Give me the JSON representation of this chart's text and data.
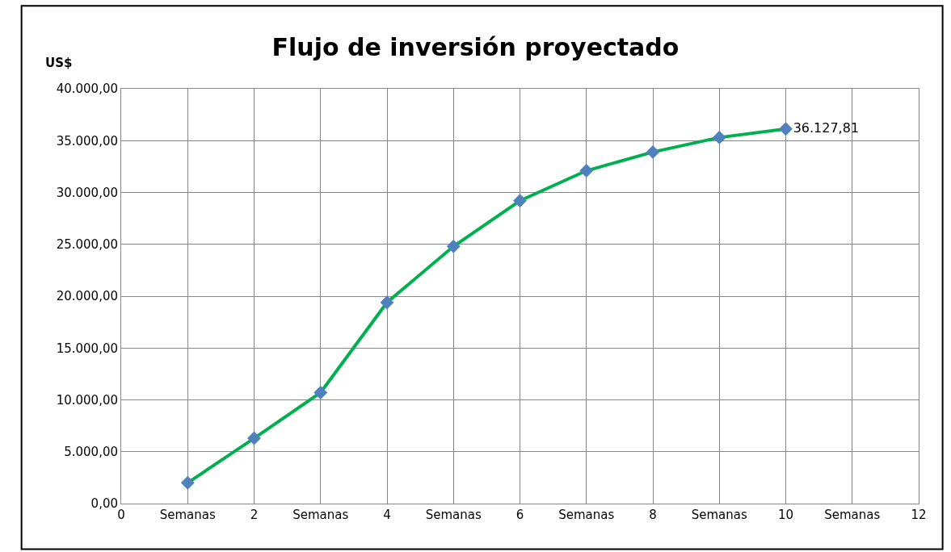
{
  "chart_data": {
    "type": "line",
    "title": "Flujo de inversión proyectado",
    "ylabel": "US$",
    "x": [
      1,
      2,
      3,
      4,
      5,
      6,
      7,
      8,
      9,
      10
    ],
    "series": [
      {
        "color": "#00b050",
        "colors": [
          "#4f81bd",
          "#4f81bd",
          "#4f81bd",
          "#4f81bd",
          "#4f81bd",
          "#4f81bd",
          "#4f81bd",
          "#4f81bd",
          "#4f81bd",
          "#4f81bd"
        ],
        "values": [
          2000,
          6300,
          10700,
          19400,
          24800,
          29200,
          32100,
          33900,
          35300,
          36127.81
        ],
        "value_labels": [
          null,
          null,
          null,
          null,
          null,
          null,
          null,
          null,
          null,
          "36.127,81"
        ]
      }
    ],
    "xlim": [
      0,
      12
    ],
    "xticks": [
      0,
      {
        "value": 1,
        "label": "Semanas"
      },
      2,
      {
        "value": 3,
        "label": "Semanas"
      },
      4,
      {
        "value": 5,
        "label": "Semanas"
      },
      6,
      {
        "value": 7,
        "label": "Semanas"
      },
      8,
      {
        "value": 9,
        "label": "Semanas"
      },
      10,
      {
        "value": 11,
        "label": "Semanas"
      },
      12
    ],
    "ylim": [
      0,
      40000
    ],
    "yticks": [
      {
        "value": 0,
        "label": "0,00"
      },
      {
        "value": 5000,
        "label": "5.000,00"
      },
      {
        "value": 10000,
        "label": "10.000,00"
      },
      {
        "value": 15000,
        "label": "15.000,00"
      },
      {
        "value": 20000,
        "label": "20.000,00"
      },
      {
        "value": 25000,
        "label": "25.000,00"
      },
      {
        "value": 30000,
        "label": "30.000,00"
      },
      {
        "value": 35000,
        "label": "35.000,00"
      },
      {
        "value": 40000,
        "label": "40.000,00"
      }
    ],
    "grid": true,
    "marker": "diamond",
    "line_style": "solid",
    "legend": false
  }
}
